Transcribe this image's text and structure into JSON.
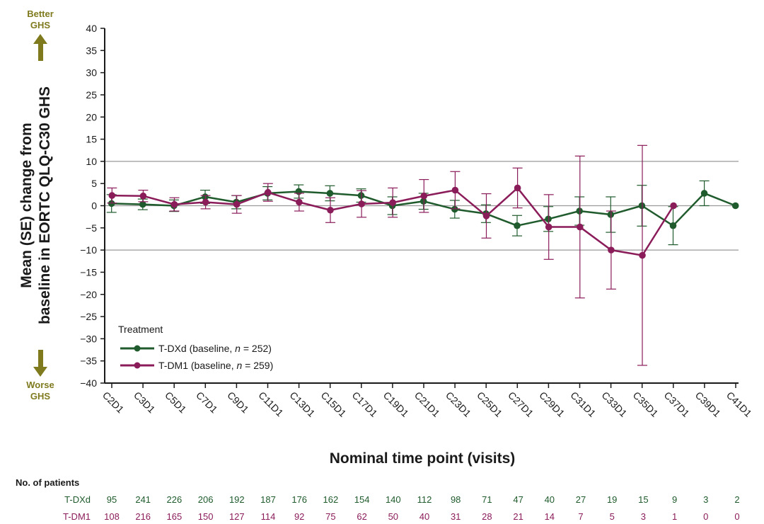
{
  "chart_data": {
    "type": "line",
    "xlabel": "Nominal time point (visits)",
    "ylabel": [
      "Mean (SE) change from",
      "baseline in EORTC QLQ-C30 GHS"
    ],
    "ylim": [
      -40,
      40
    ],
    "yticks": [
      40,
      35,
      30,
      25,
      20,
      15,
      10,
      5,
      0,
      -5,
      -10,
      -15,
      -20,
      -25,
      -30,
      -35,
      -40
    ],
    "ytick_labels": [
      "40",
      "35",
      "30",
      "25",
      "20",
      "15",
      "10",
      "5",
      "0",
      "−5",
      "−10",
      "−15",
      "−20",
      "−25",
      "−30",
      "−35",
      "−40"
    ],
    "reference_lines": [
      10,
      0,
      -10
    ],
    "categories": [
      "C2D1",
      "C3D1",
      "C5D1",
      "C7D1",
      "C9D1",
      "C11D1",
      "C13D1",
      "C15D1",
      "C17D1",
      "C19D1",
      "C21D1",
      "C23D1",
      "C25D1",
      "C27D1",
      "C29D1",
      "C31D1",
      "C33D1",
      "C35D1",
      "C37D1",
      "C39D1",
      "C41D1"
    ],
    "better_label": [
      "Better",
      "GHS"
    ],
    "worse_label": [
      "Worse",
      "GHS"
    ],
    "legend": {
      "title": "Treatment",
      "position": "lower-left"
    },
    "series": [
      {
        "name": "T-DXd (baseline, n = 252)",
        "name_prefix": "T-DXd (baseline, ",
        "name_n": "n",
        "name_suffix": " = 252)",
        "color": "#1f5b2c",
        "values": [
          0.5,
          0.3,
          0.0,
          2.0,
          0.8,
          2.8,
          3.2,
          2.8,
          2.3,
          0.0,
          1.0,
          -0.8,
          -1.8,
          -4.5,
          -3.0,
          -1.2,
          -2.0,
          0.0,
          -4.5,
          2.8,
          0.0
        ],
        "se": [
          2.0,
          1.2,
          1.3,
          1.5,
          1.5,
          1.5,
          1.5,
          1.7,
          1.5,
          2.0,
          1.8,
          2.0,
          2.0,
          2.3,
          2.8,
          3.2,
          4.0,
          4.6,
          4.3,
          2.8,
          0
        ]
      },
      {
        "name": "T-DM1 (baseline, n = 259)",
        "name_prefix": "T-DM1 (baseline, ",
        "name_n": "n",
        "name_suffix": " = 259)",
        "color": "#8b1c5a",
        "values": [
          2.3,
          2.2,
          0.3,
          0.8,
          0.3,
          3.0,
          0.8,
          -1.0,
          0.4,
          0.7,
          2.2,
          3.5,
          -2.3,
          4.0,
          -4.8,
          -4.8,
          -10.0,
          -11.2,
          0.0,
          null,
          null
        ],
        "se": [
          1.7,
          1.3,
          1.5,
          1.5,
          2.0,
          2.0,
          2.0,
          2.8,
          3.0,
          3.3,
          3.7,
          4.2,
          5.0,
          4.5,
          7.3,
          16.0,
          8.8,
          24.8,
          0,
          null,
          null
        ]
      }
    ],
    "patients": {
      "title": "No. of patients",
      "rows": [
        {
          "label": "T-DXd",
          "color": "#1f5b2c",
          "counts": [
            "95",
            "241",
            "226",
            "206",
            "192",
            "187",
            "176",
            "162",
            "154",
            "140",
            "112",
            "98",
            "71",
            "47",
            "40",
            "27",
            "19",
            "15",
            "9",
            "3",
            "2"
          ]
        },
        {
          "label": "T-DM1",
          "color": "#8b1c5a",
          "counts": [
            "108",
            "216",
            "165",
            "150",
            "127",
            "114",
            "92",
            "75",
            "62",
            "50",
            "40",
            "31",
            "28",
            "21",
            "14",
            "7",
            "5",
            "3",
            "1",
            "0",
            "0"
          ]
        }
      ]
    },
    "grid": false,
    "arrow_color": "#7f7a1e"
  }
}
